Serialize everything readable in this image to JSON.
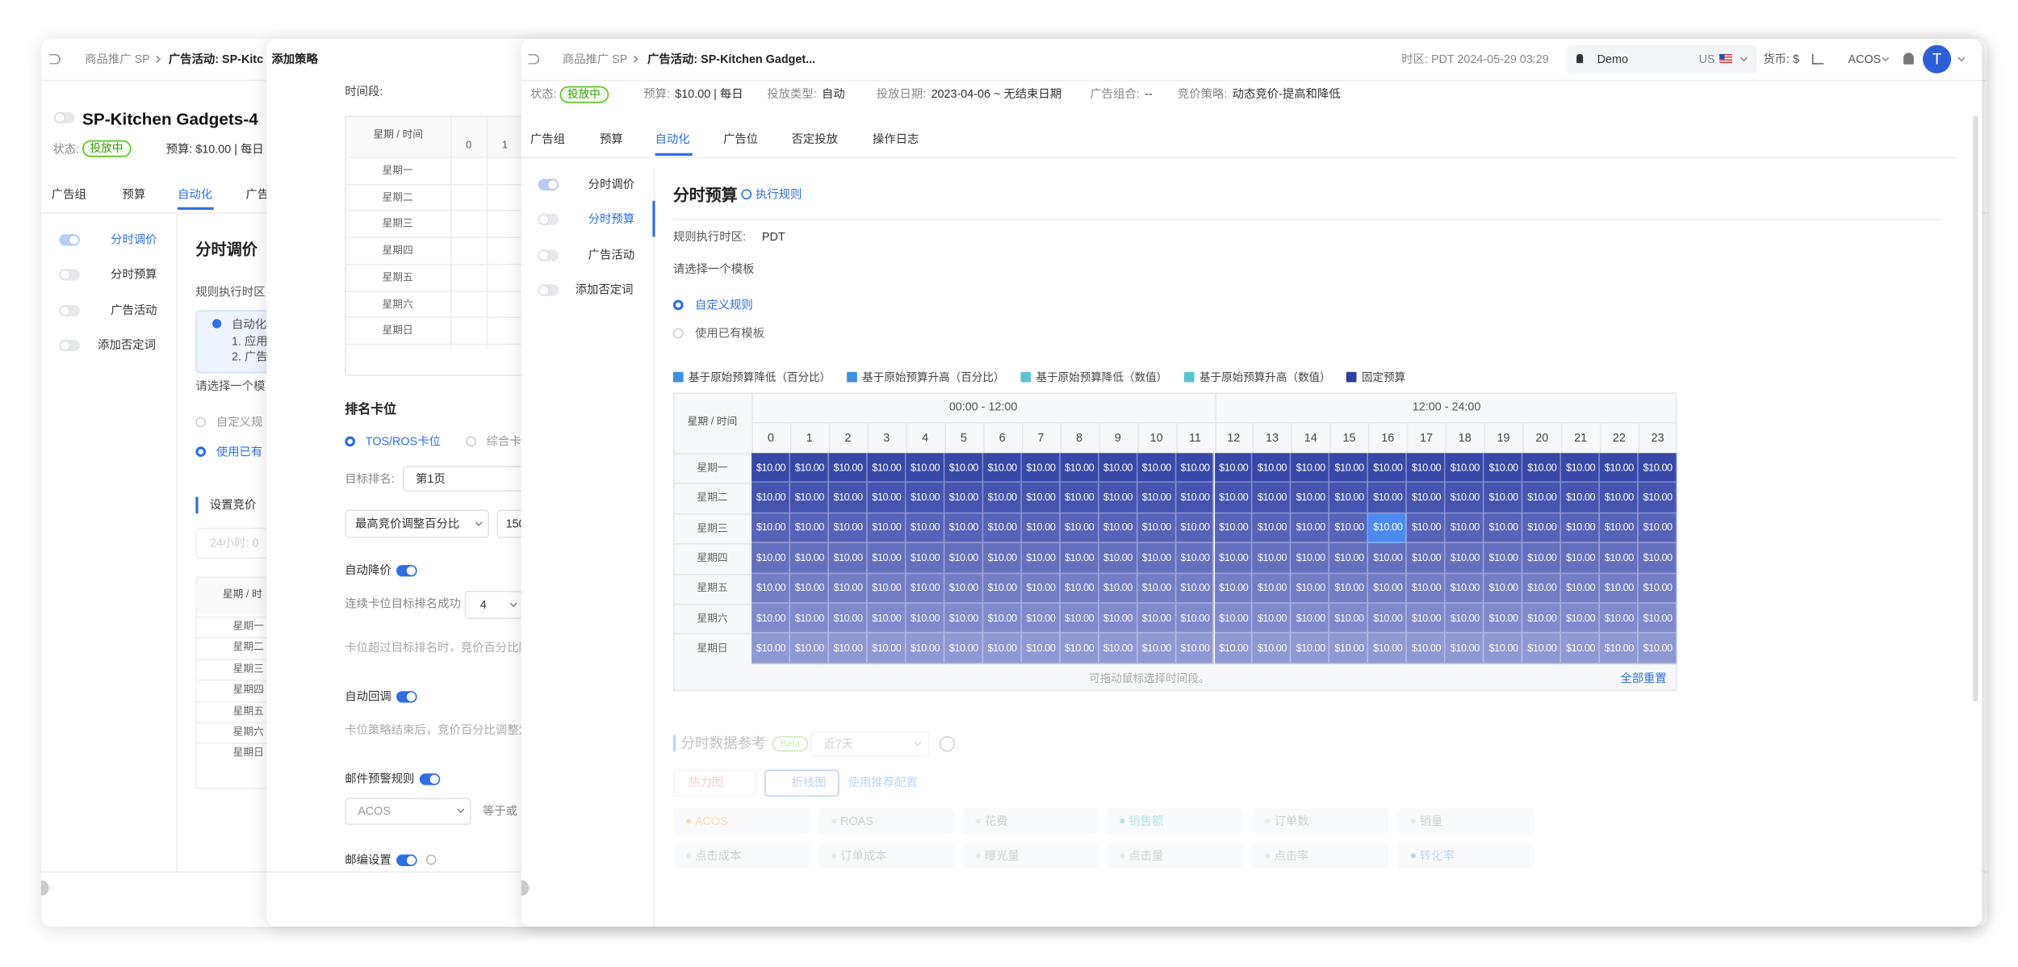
{
  "back_panel": {
    "breadcrumb": [
      "商品推广 SP",
      "广告活动: SP-Kitc"
    ],
    "title": "SP-Kitchen Gadgets-4",
    "status_label": "状态:",
    "status": "投放中",
    "budget": "预算: $10.00 | 每日",
    "tabs": [
      "广告组",
      "预算",
      "自动化",
      "广告"
    ],
    "menu": [
      "分时调价",
      "分时预算",
      "广告活动",
      "添加否定词"
    ],
    "section_title": "分时调价",
    "timezone_label": "规则执行时区",
    "info": [
      "自动化",
      "1. 应用",
      "2. 广告"
    ],
    "template_prompt": "请选择一个模",
    "template_options": [
      "自定义规",
      "使用已有"
    ],
    "bid_title": "设置竞价",
    "bid_input": "24小时: 0",
    "table_header": "星期 / 时",
    "days": [
      "星期一",
      "星期二",
      "星期三",
      "星期四",
      "星期五",
      "星期六",
      "星期日"
    ]
  },
  "strategy_panel": {
    "title": "添加策略",
    "time_label": "时间段:",
    "table_header": "星期 / 时间",
    "hours": [
      0,
      1
    ],
    "days": [
      "星期一",
      "星期二",
      "星期三",
      "星期四",
      "星期五",
      "星期六",
      "星期日"
    ],
    "rank_title": "排名卡位",
    "rank_options": [
      "TOS/ROS卡位",
      "综合卡"
    ],
    "target_label": "目标排名:",
    "target_value": "第1页",
    "adjust_select": "最高竞价调整百分比",
    "adjust_value": "150",
    "auto_down": "自动降价",
    "consecutive_label": "连续卡位目标排名成功",
    "consecutive_value": "4",
    "down_desc": "卡位超过目标排名时，竞价百分比降",
    "auto_back": "自动回调",
    "back_desc": "卡位策略结束后，竞价百分比调整为",
    "alert_title": "邮件预警规则",
    "alert_metric": "ACOS",
    "alert_op": "等于或",
    "zip_title": "邮编设置"
  },
  "front_panel": {
    "breadcrumb": [
      "商品推广 SP",
      "广告活动: SP-Kitchen Gadget..."
    ],
    "timezone": "时区: PDT 2024-05-29 03:29",
    "account": "Demo",
    "region": "US",
    "currency": "货币: $",
    "metric": "ACOS",
    "avatar": "T",
    "status_label": "状态:",
    "status": "投放中",
    "info_items": [
      {
        "label": "预算:",
        "value": "$10.00 | 每日"
      },
      {
        "label": "投放类型:",
        "value": "自动"
      },
      {
        "label": "投放日期:",
        "value": "2023-04-06 ~ 无结束日期"
      },
      {
        "label": "广告组合:",
        "value": "--"
      },
      {
        "label": "竞价策略:",
        "value": "动态竞价-提高和降低"
      }
    ],
    "tabs": [
      "广告组",
      "预算",
      "自动化",
      "广告位",
      "否定投放",
      "操作日志"
    ],
    "menu": [
      "分时调价",
      "分时预算",
      "广告活动",
      "添加否定词"
    ],
    "section_title": "分时预算",
    "rule_link": "执行规则",
    "timezone_label": "规则执行时区:",
    "timezone_value": "PDT",
    "template_prompt": "请选择一个模板",
    "template_options": [
      "自定义规则",
      "使用已有模板"
    ],
    "legend": [
      "基于原始预算降低（百分比）",
      "基于原始预算升高（百分比）",
      "基于原始预算降低（数值）",
      "基于原始预算升高（数值）",
      "固定预算"
    ],
    "schedule": {
      "header": "星期 / 时间",
      "halves": [
        "00:00 - 12:00",
        "12:00 - 24:00"
      ],
      "hours": [
        0,
        1,
        2,
        3,
        4,
        5,
        6,
        7,
        8,
        9,
        10,
        11,
        12,
        13,
        14,
        15,
        16,
        17,
        18,
        19,
        20,
        21,
        22,
        23
      ],
      "days": [
        "星期一",
        "星期二",
        "星期三",
        "星期四",
        "星期五",
        "星期六",
        "星期日"
      ],
      "cells": [
        [
          "$10.00",
          "$10.00",
          "$10.00",
          "$10.00",
          "$10.00",
          "$10.00",
          "$10.00",
          "$10.00",
          "$10.00",
          "$10.00",
          "$10.00",
          "$10.00",
          "$10.00",
          "$10.00",
          "$10.00",
          "$10.00",
          "$10.00",
          "$10.00",
          "$10.00",
          "$10.00",
          "$10.00",
          "$10.00",
          "$10.00",
          "$10.00"
        ],
        [
          "$10.00",
          "$10.00",
          "$10.00",
          "$10.00",
          "$10.00",
          "$10.00",
          "$10.00",
          "$10.00",
          "$10.00",
          "$10.00",
          "$10.00",
          "$10.00",
          "$10.00",
          "$10.00",
          "$10.00",
          "$10.00",
          "$10.00",
          "$10.00",
          "$10.00",
          "$10.00",
          "$10.00",
          "$10.00",
          "$10.00",
          "$10.00"
        ],
        [
          "$10.00",
          "$10.00",
          "$10.00",
          "$10.00",
          "$10.00",
          "$10.00",
          "$10.00",
          "$10.00",
          "$10.00",
          "$10.00",
          "$10.00",
          "$10.00",
          "$10.00",
          "$10.00",
          "$10.00",
          "$10.00",
          "$10.00",
          "$10.00",
          "$10.00",
          "$10.00",
          "$10.00",
          "$10.00",
          "$10.00",
          "$10.00"
        ],
        [
          "$10.00",
          "$10.00",
          "$10.00",
          "$10.00",
          "$10.00",
          "$10.00",
          "$10.00",
          "$10.00",
          "$10.00",
          "$10.00",
          "$10.00",
          "$10.00",
          "$10.00",
          "$10.00",
          "$10.00",
          "$10.00",
          "$10.00",
          "$10.00",
          "$10.00",
          "$10.00",
          "$10.00",
          "$10.00",
          "$10.00",
          "$10.00"
        ],
        [
          "$10.00",
          "$10.00",
          "$10.00",
          "$10.00",
          "$10.00",
          "$10.00",
          "$10.00",
          "$10.00",
          "$10.00",
          "$10.00",
          "$10.00",
          "$10.00",
          "$10.00",
          "$10.00",
          "$10.00",
          "$10.00",
          "$10.00",
          "$10.00",
          "$10.00",
          "$10.00",
          "$10.00",
          "$10.00",
          "$10.00",
          "$10.00"
        ],
        [
          "$10.00",
          "$10.00",
          "$10.00",
          "$10.00",
          "$10.00",
          "$10.00",
          "$10.00",
          "$10.00",
          "$10.00",
          "$10.00",
          "$10.00",
          "$10.00",
          "$10.00",
          "$10.00",
          "$10.00",
          "$10.00",
          "$10.00",
          "$10.00",
          "$10.00",
          "$10.00",
          "$10.00",
          "$10.00",
          "$10.00",
          "$10.00"
        ],
        [
          "$10.00",
          "$10.00",
          "$10.00",
          "$10.00",
          "$10.00",
          "$10.00",
          "$10.00",
          "$10.00",
          "$10.00",
          "$10.00",
          "$10.00",
          "$10.00",
          "$10.00",
          "$10.00",
          "$10.00",
          "$10.00",
          "$10.00",
          "$10.00",
          "$10.00",
          "$10.00",
          "$10.00",
          "$10.00",
          "$10.00",
          "$10.00"
        ]
      ],
      "hint": "可拖动鼠标选择时间段。",
      "reset": "全部重置"
    },
    "reference": {
      "title": "分时数据参考",
      "badge": "Beta",
      "range": "近7天",
      "views": [
        "热力图",
        "折线图"
      ],
      "recommend": "使用推荐配置",
      "metrics": [
        "ACOS",
        "ROAS",
        "花费",
        "销售额",
        "订单数",
        "销量",
        "点击成本",
        "订单成本",
        "曝光量",
        "点击量",
        "点击率",
        "转化率"
      ]
    }
  }
}
